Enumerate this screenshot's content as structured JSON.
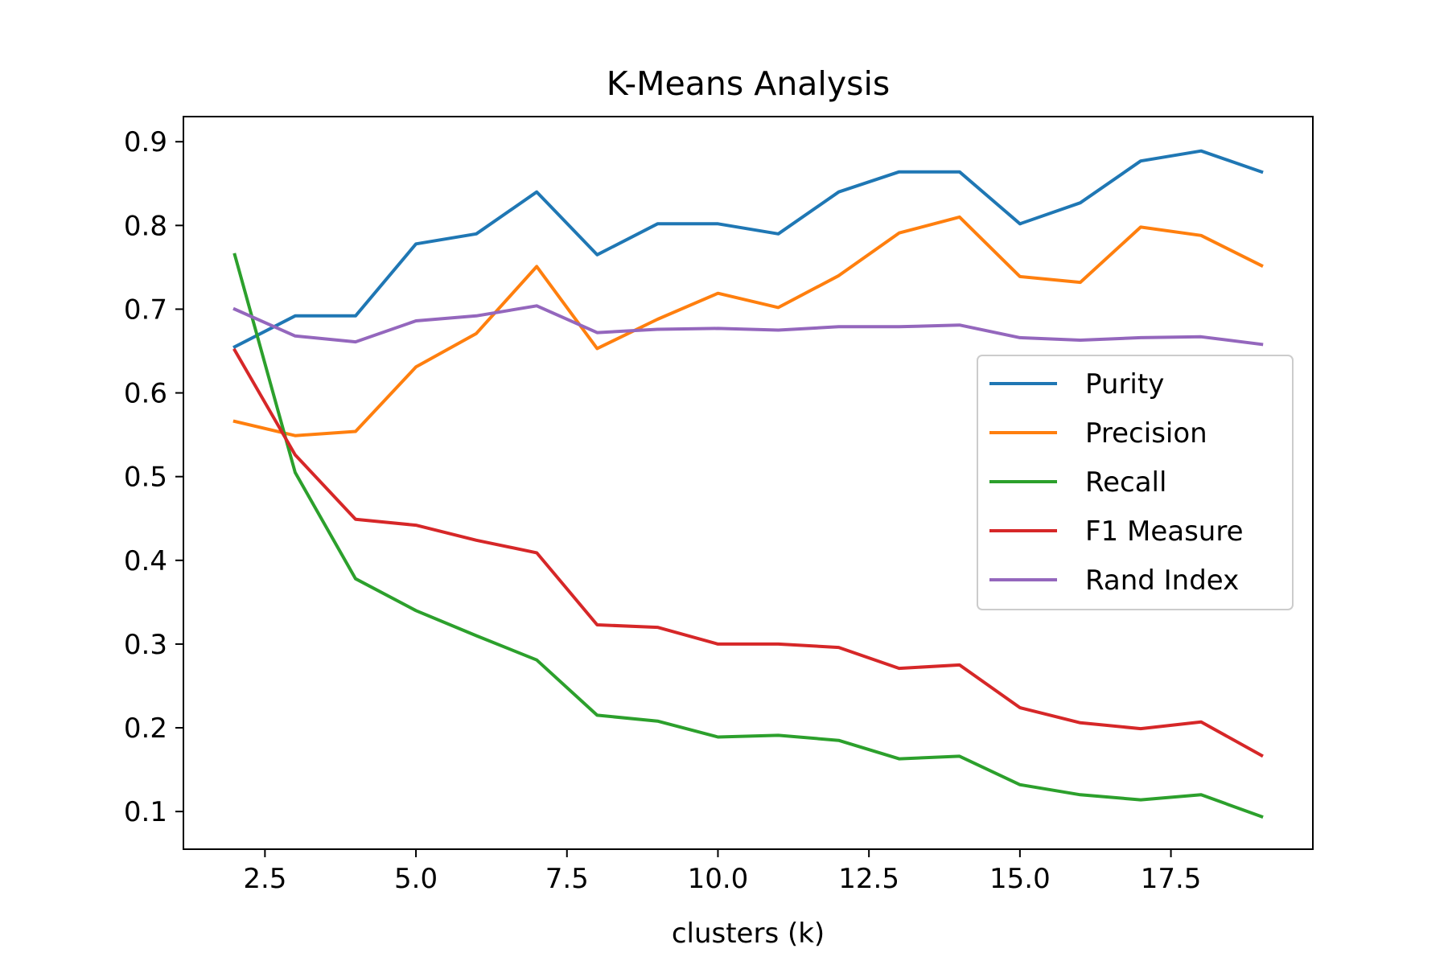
{
  "chart_data": {
    "type": "line",
    "title": "K-Means Analysis",
    "xlabel": "clusters (k)",
    "ylabel": "",
    "xlim": [
      1.15,
      19.85
    ],
    "ylim": [
      0.055,
      0.93
    ],
    "xticks": [
      2.5,
      5.0,
      7.5,
      10.0,
      12.5,
      15.0,
      17.5
    ],
    "xtick_labels": [
      "2.5",
      "5.0",
      "7.5",
      "10.0",
      "12.5",
      "15.0",
      "17.5"
    ],
    "yticks": [
      0.1,
      0.2,
      0.3,
      0.4,
      0.5,
      0.6,
      0.7,
      0.8,
      0.9
    ],
    "ytick_labels": [
      "0.1",
      "0.2",
      "0.3",
      "0.4",
      "0.5",
      "0.6",
      "0.7",
      "0.8",
      "0.9"
    ],
    "grid": false,
    "legend_position": "center-right",
    "x": [
      2,
      3,
      4,
      5,
      6,
      7,
      8,
      9,
      10,
      11,
      12,
      13,
      14,
      15,
      16,
      17,
      18,
      19
    ],
    "series": [
      {
        "name": "Purity",
        "color": "#1f77b4",
        "values": [
          0.655,
          0.692,
          0.692,
          0.778,
          0.79,
          0.84,
          0.765,
          0.802,
          0.802,
          0.79,
          0.84,
          0.864,
          0.864,
          0.802,
          0.827,
          0.877,
          0.889,
          0.864
        ]
      },
      {
        "name": "Precision",
        "color": "#ff7f0e",
        "values": [
          0.566,
          0.549,
          0.554,
          0.631,
          0.671,
          0.751,
          0.653,
          0.688,
          0.719,
          0.702,
          0.74,
          0.791,
          0.81,
          0.739,
          0.732,
          0.798,
          0.788,
          0.752
        ]
      },
      {
        "name": "Recall",
        "color": "#2ca02c",
        "values": [
          0.765,
          0.505,
          0.378,
          0.34,
          0.31,
          0.281,
          0.215,
          0.208,
          0.189,
          0.191,
          0.185,
          0.163,
          0.166,
          0.132,
          0.12,
          0.114,
          0.12,
          0.094
        ]
      },
      {
        "name": "F1 Measure",
        "color": "#d62728",
        "values": [
          0.651,
          0.526,
          0.449,
          0.442,
          0.424,
          0.409,
          0.323,
          0.32,
          0.3,
          0.3,
          0.296,
          0.271,
          0.275,
          0.224,
          0.206,
          0.199,
          0.207,
          0.167
        ]
      },
      {
        "name": "Rand Index",
        "color": "#9467bd",
        "values": [
          0.7,
          0.668,
          0.661,
          0.686,
          0.692,
          0.704,
          0.672,
          0.676,
          0.677,
          0.675,
          0.679,
          0.679,
          0.681,
          0.666,
          0.663,
          0.666,
          0.667,
          0.658
        ]
      }
    ]
  }
}
